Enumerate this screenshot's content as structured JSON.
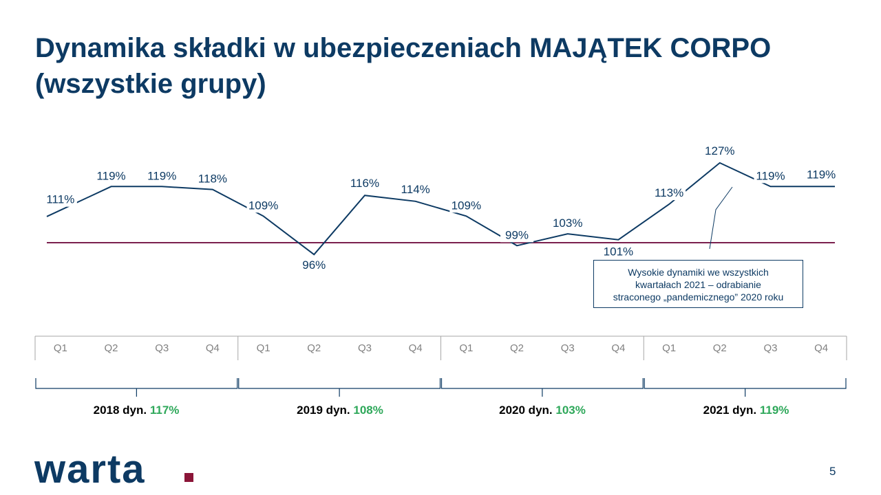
{
  "title": {
    "line1": "Dynamika składki w ubezpieczeniach MAJĄTEK CORPO",
    "line2": "(wszystkie grupy)"
  },
  "chart_data": {
    "type": "line",
    "x": [
      "Q1",
      "Q2",
      "Q3",
      "Q4",
      "Q1",
      "Q2",
      "Q3",
      "Q4",
      "Q1",
      "Q2",
      "Q3",
      "Q4",
      "Q1",
      "Q2",
      "Q3",
      "Q4"
    ],
    "series": [
      {
        "values": [
          111,
          119,
          119,
          118,
          109,
          96,
          116,
          114,
          109,
          99,
          103,
          101,
          113,
          127,
          119,
          119
        ],
        "labels": [
          "111%",
          "119%",
          "119%",
          "118%",
          "109%",
          "96%",
          "116%",
          "114%",
          "109%",
          "99%",
          "103%",
          "101%",
          "113%",
          "127%",
          "119%",
          "119%"
        ]
      }
    ],
    "reference_line": 100,
    "ylim": [
      90,
      132
    ],
    "groups": [
      {
        "year": "2018 dyn.",
        "value": "117%"
      },
      {
        "year": "2019 dyn.",
        "value": "108%"
      },
      {
        "year": "2020 dyn.",
        "value": "103%"
      },
      {
        "year": "2021 dyn.",
        "value": "119%"
      }
    ],
    "annotation": {
      "line1": "Wysokie dynamiki we wszystkich",
      "line2": "kwartałach 2021 – odrabianie",
      "line3": "straconego „pandemicznego” 2020 roku"
    }
  },
  "colors": {
    "title": "#0d3a63",
    "series": "#0d3a63",
    "reference": "#7a1f4d",
    "accent_green": "#2ea85a",
    "logo": "#0d3a63",
    "logo_dot": "#8b1538",
    "axis": "#a6a6a6"
  },
  "logo": {
    "text": "warta"
  },
  "page_number": "5"
}
